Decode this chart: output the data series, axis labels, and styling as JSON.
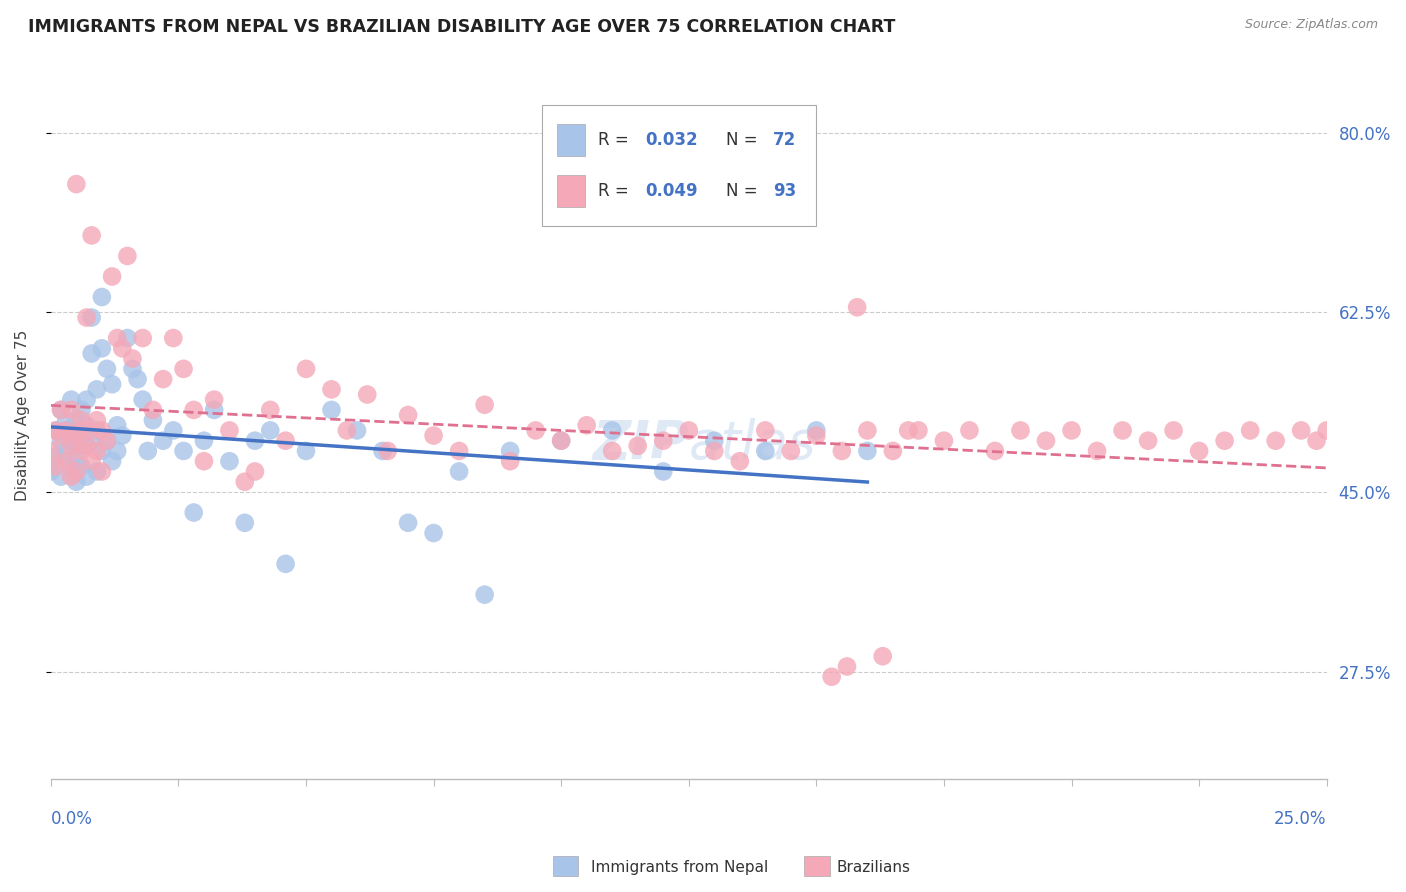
{
  "title": "IMMIGRANTS FROM NEPAL VS BRAZILIAN DISABILITY AGE OVER 75 CORRELATION CHART",
  "source": "Source: ZipAtlas.com",
  "ylabel": "Disability Age Over 75",
  "xlim": [
    0.0,
    0.25
  ],
  "ylim": [
    0.17,
    0.88
  ],
  "yticks_right": [
    0.275,
    0.45,
    0.625,
    0.8
  ],
  "ytick_labels_right": [
    "27.5%",
    "45.0%",
    "62.5%",
    "80.0%"
  ],
  "color_nepal": "#a8c4e8",
  "color_brazil": "#f4a8b8",
  "color_nepal_line": "#4472c4",
  "color_brazil_line": "#e07090",
  "color_blue": "#4472c4",
  "watermark": "ZIPatlas",
  "nepal_x": [
    0.0,
    0.001,
    0.001,
    0.002,
    0.002,
    0.002,
    0.003,
    0.003,
    0.003,
    0.004,
    0.004,
    0.004,
    0.005,
    0.005,
    0.005,
    0.005,
    0.006,
    0.006,
    0.006,
    0.007,
    0.007,
    0.007,
    0.007,
    0.008,
    0.008,
    0.008,
    0.009,
    0.009,
    0.009,
    0.01,
    0.01,
    0.01,
    0.011,
    0.011,
    0.012,
    0.012,
    0.013,
    0.013,
    0.014,
    0.015,
    0.016,
    0.017,
    0.018,
    0.019,
    0.02,
    0.022,
    0.024,
    0.026,
    0.028,
    0.03,
    0.032,
    0.035,
    0.038,
    0.04,
    0.043,
    0.046,
    0.05,
    0.055,
    0.06,
    0.065,
    0.07,
    0.075,
    0.08,
    0.085,
    0.09,
    0.1,
    0.11,
    0.12,
    0.13,
    0.14,
    0.15,
    0.16
  ],
  "nepal_y": [
    0.47,
    0.51,
    0.485,
    0.5,
    0.53,
    0.465,
    0.51,
    0.49,
    0.52,
    0.5,
    0.475,
    0.54,
    0.495,
    0.52,
    0.48,
    0.46,
    0.505,
    0.53,
    0.475,
    0.495,
    0.515,
    0.54,
    0.465,
    0.62,
    0.585,
    0.5,
    0.55,
    0.51,
    0.47,
    0.64,
    0.59,
    0.49,
    0.57,
    0.5,
    0.555,
    0.48,
    0.515,
    0.49,
    0.505,
    0.6,
    0.57,
    0.56,
    0.54,
    0.49,
    0.52,
    0.5,
    0.51,
    0.49,
    0.43,
    0.5,
    0.53,
    0.48,
    0.42,
    0.5,
    0.51,
    0.38,
    0.49,
    0.53,
    0.51,
    0.49,
    0.42,
    0.41,
    0.47,
    0.35,
    0.49,
    0.5,
    0.51,
    0.47,
    0.5,
    0.49,
    0.51,
    0.49
  ],
  "brazil_x": [
    0.0,
    0.001,
    0.001,
    0.002,
    0.002,
    0.003,
    0.003,
    0.004,
    0.004,
    0.004,
    0.005,
    0.005,
    0.005,
    0.006,
    0.006,
    0.006,
    0.007,
    0.007,
    0.008,
    0.008,
    0.008,
    0.009,
    0.009,
    0.01,
    0.01,
    0.011,
    0.012,
    0.013,
    0.014,
    0.015,
    0.016,
    0.018,
    0.02,
    0.022,
    0.024,
    0.026,
    0.028,
    0.03,
    0.032,
    0.035,
    0.038,
    0.04,
    0.043,
    0.046,
    0.05,
    0.055,
    0.058,
    0.062,
    0.066,
    0.07,
    0.075,
    0.08,
    0.085,
    0.09,
    0.095,
    0.1,
    0.105,
    0.11,
    0.115,
    0.12,
    0.125,
    0.13,
    0.135,
    0.14,
    0.145,
    0.15,
    0.155,
    0.16,
    0.165,
    0.17,
    0.175,
    0.18,
    0.185,
    0.19,
    0.195,
    0.2,
    0.205,
    0.21,
    0.215,
    0.22,
    0.225,
    0.23,
    0.235,
    0.24,
    0.245,
    0.248,
    0.25,
    0.153,
    0.156,
    0.158,
    0.163,
    0.168
  ],
  "brazil_y": [
    0.49,
    0.51,
    0.475,
    0.505,
    0.53,
    0.48,
    0.51,
    0.495,
    0.53,
    0.465,
    0.505,
    0.47,
    0.75,
    0.51,
    0.49,
    0.52,
    0.495,
    0.62,
    0.51,
    0.48,
    0.7,
    0.52,
    0.49,
    0.51,
    0.47,
    0.5,
    0.66,
    0.6,
    0.59,
    0.68,
    0.58,
    0.6,
    0.53,
    0.56,
    0.6,
    0.57,
    0.53,
    0.48,
    0.54,
    0.51,
    0.46,
    0.47,
    0.53,
    0.5,
    0.57,
    0.55,
    0.51,
    0.545,
    0.49,
    0.525,
    0.505,
    0.49,
    0.535,
    0.48,
    0.51,
    0.5,
    0.515,
    0.49,
    0.495,
    0.5,
    0.51,
    0.49,
    0.48,
    0.51,
    0.49,
    0.505,
    0.49,
    0.51,
    0.49,
    0.51,
    0.5,
    0.51,
    0.49,
    0.51,
    0.5,
    0.51,
    0.49,
    0.51,
    0.5,
    0.51,
    0.49,
    0.5,
    0.51,
    0.5,
    0.51,
    0.5,
    0.51,
    0.27,
    0.28,
    0.63,
    0.29,
    0.51
  ]
}
